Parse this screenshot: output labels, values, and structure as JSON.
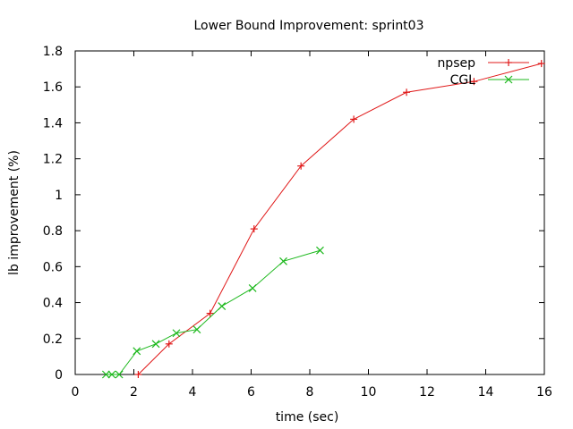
{
  "chart_data": {
    "type": "line",
    "title": "Lower Bound Improvement: sprint03",
    "xlabel": "time (sec)",
    "ylabel": "lb improvement (%)",
    "xlim": [
      0,
      16
    ],
    "ylim": [
      0,
      1.8
    ],
    "xticks": [
      0,
      2,
      4,
      6,
      8,
      10,
      12,
      14,
      16
    ],
    "yticks": [
      0,
      0.2,
      0.4,
      0.6,
      0.8,
      1,
      1.2,
      1.4,
      1.6,
      1.8
    ],
    "xtick_labels": [
      "0",
      "2",
      "4",
      "6",
      "8",
      "10",
      "12",
      "14",
      "16"
    ],
    "ytick_labels": [
      "0",
      "0.2",
      "0.4",
      "0.6",
      "0.8",
      "1",
      "1.2",
      "1.4",
      "1.6",
      "1.8"
    ],
    "grid": false,
    "legend": "top-right",
    "series": [
      {
        "name": "npsep",
        "color": "#e01818",
        "marker": "plus",
        "x": [
          2.15,
          3.2,
          4.6,
          6.1,
          7.7,
          9.5,
          11.3,
          13.6,
          15.9
        ],
        "y": [
          0.0,
          0.17,
          0.34,
          0.81,
          1.16,
          1.42,
          1.57,
          1.63,
          1.73
        ]
      },
      {
        "name": "CGL",
        "color": "#1cb81c",
        "marker": "cross",
        "x": [
          1.05,
          1.25,
          1.5,
          2.1,
          2.75,
          3.45,
          4.15,
          5.0,
          6.05,
          7.1,
          8.35
        ],
        "y": [
          0.0,
          0.0,
          0.0,
          0.13,
          0.17,
          0.23,
          0.25,
          0.38,
          0.48,
          0.63,
          0.69
        ]
      }
    ]
  }
}
